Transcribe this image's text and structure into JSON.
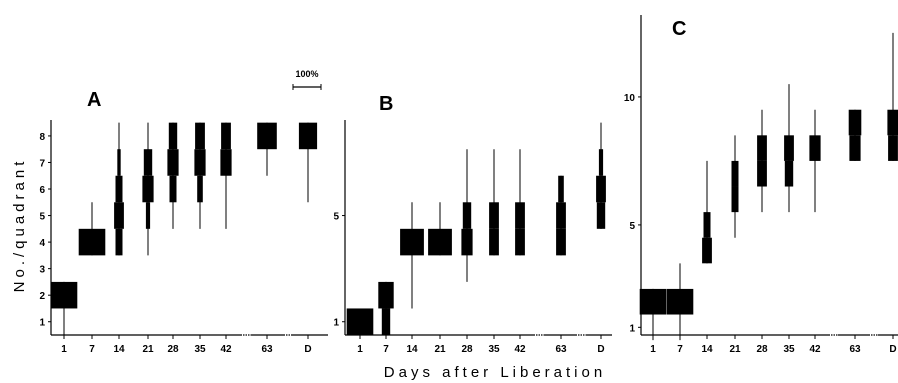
{
  "figure": {
    "ylabel": "No./quadrant",
    "xlabel": "Days after Liberation",
    "scale_label": "100%"
  },
  "chart_data": [
    {
      "type": "kite",
      "title": "A",
      "x": [
        "1",
        "7",
        "14",
        "21",
        "28",
        "35",
        "42",
        "63",
        "D"
      ],
      "ylim": [
        0.5,
        8.6
      ],
      "yticks": [
        1,
        2,
        3,
        4,
        5,
        6,
        7,
        8
      ],
      "kites": [
        {
          "x": "1",
          "bands": [
            {
              "lo": 1.5,
              "hi": 2.5,
              "pct": 95
            }
          ],
          "range": [
            0.5,
            2.5
          ]
        },
        {
          "x": "7",
          "bands": [
            {
              "lo": 3.5,
              "hi": 4.5,
              "pct": 95
            }
          ],
          "range": [
            3.5,
            5.5
          ]
        },
        {
          "x": "14",
          "bands": [
            {
              "lo": 3.5,
              "hi": 4.5,
              "pct": 25
            },
            {
              "lo": 4.5,
              "hi": 5.5,
              "pct": 35
            },
            {
              "lo": 5.5,
              "hi": 6.5,
              "pct": 25
            },
            {
              "lo": 6.5,
              "hi": 7.5,
              "pct": 12
            }
          ],
          "range": [
            3.5,
            8.5
          ]
        },
        {
          "x": "21",
          "bands": [
            {
              "lo": 4.5,
              "hi": 5.5,
              "pct": 15
            },
            {
              "lo": 5.5,
              "hi": 6.5,
              "pct": 40
            },
            {
              "lo": 6.5,
              "hi": 7.5,
              "pct": 30
            }
          ],
          "range": [
            3.5,
            8.5
          ]
        },
        {
          "x": "28",
          "bands": [
            {
              "lo": 5.5,
              "hi": 6.5,
              "pct": 25
            },
            {
              "lo": 6.5,
              "hi": 7.5,
              "pct": 40
            },
            {
              "lo": 7.5,
              "hi": 8.5,
              "pct": 30
            }
          ],
          "range": [
            4.5,
            8.5
          ]
        },
        {
          "x": "35",
          "bands": [
            {
              "lo": 5.5,
              "hi": 6.5,
              "pct": 20
            },
            {
              "lo": 6.5,
              "hi": 7.5,
              "pct": 40
            },
            {
              "lo": 7.5,
              "hi": 8.5,
              "pct": 35
            }
          ],
          "range": [
            4.5,
            8.5
          ]
        },
        {
          "x": "42",
          "bands": [
            {
              "lo": 6.5,
              "hi": 7.5,
              "pct": 40
            },
            {
              "lo": 7.5,
              "hi": 8.5,
              "pct": 35
            }
          ],
          "range": [
            4.5,
            8.5
          ]
        },
        {
          "x": "63",
          "bands": [
            {
              "lo": 7.5,
              "hi": 8.5,
              "pct": 70
            }
          ],
          "range": [
            6.5,
            8.5
          ]
        },
        {
          "x": "D",
          "bands": [
            {
              "lo": 7.5,
              "hi": 8.5,
              "pct": 65
            }
          ],
          "range": [
            5.5,
            8.5
          ]
        }
      ]
    },
    {
      "type": "kite",
      "title": "B",
      "x": [
        "1",
        "7",
        "14",
        "21",
        "28",
        "35",
        "42",
        "63",
        "D"
      ],
      "ylim": [
        0.5,
        8.6
      ],
      "yticks": [
        1,
        5
      ],
      "kites": [
        {
          "x": "1",
          "bands": [
            {
              "lo": 0.5,
              "hi": 1.5,
              "pct": 95
            }
          ],
          "range": [
            0.5,
            1.5
          ]
        },
        {
          "x": "7",
          "bands": [
            {
              "lo": 0.5,
              "hi": 1.5,
              "pct": 30
            },
            {
              "lo": 1.5,
              "hi": 2.5,
              "pct": 55
            }
          ],
          "range": [
            0.5,
            2.5
          ]
        },
        {
          "x": "14",
          "bands": [
            {
              "lo": 3.5,
              "hi": 4.5,
              "pct": 85
            }
          ],
          "range": [
            1.5,
            5.5
          ]
        },
        {
          "x": "21",
          "bands": [
            {
              "lo": 3.5,
              "hi": 4.5,
              "pct": 85
            }
          ],
          "range": [
            3.5,
            5.5
          ]
        },
        {
          "x": "28",
          "bands": [
            {
              "lo": 3.5,
              "hi": 4.5,
              "pct": 40
            },
            {
              "lo": 4.5,
              "hi": 5.5,
              "pct": 30
            }
          ],
          "range": [
            2.5,
            7.5
          ]
        },
        {
          "x": "35",
          "bands": [
            {
              "lo": 3.5,
              "hi": 4.5,
              "pct": 35
            },
            {
              "lo": 4.5,
              "hi": 5.5,
              "pct": 35
            }
          ],
          "range": [
            3.5,
            7.5
          ]
        },
        {
          "x": "42",
          "bands": [
            {
              "lo": 3.5,
              "hi": 4.5,
              "pct": 35
            },
            {
              "lo": 4.5,
              "hi": 5.5,
              "pct": 35
            }
          ],
          "range": [
            3.5,
            7.5
          ]
        },
        {
          "x": "63",
          "bands": [
            {
              "lo": 3.5,
              "hi": 4.5,
              "pct": 35
            },
            {
              "lo": 4.5,
              "hi": 5.5,
              "pct": 35
            },
            {
              "lo": 5.5,
              "hi": 6.5,
              "pct": 20
            }
          ],
          "range": [
            3.5,
            6.5
          ]
        },
        {
          "x": "D",
          "bands": [
            {
              "lo": 4.5,
              "hi": 5.5,
              "pct": 30
            },
            {
              "lo": 5.5,
              "hi": 6.5,
              "pct": 35
            },
            {
              "lo": 6.5,
              "hi": 7.5,
              "pct": 15
            }
          ],
          "range": [
            4.5,
            8.5
          ]
        }
      ]
    },
    {
      "type": "kite",
      "title": "C",
      "x": [
        "1",
        "7",
        "14",
        "21",
        "28",
        "35",
        "42",
        "63",
        "D"
      ],
      "ylim": [
        0.7,
        13.2
      ],
      "yticks": [
        1,
        5,
        10
      ],
      "kites": [
        {
          "x": "1",
          "bands": [
            {
              "lo": 1.5,
              "hi": 2.5,
              "pct": 95
            }
          ],
          "range": [
            0.5,
            2.5
          ]
        },
        {
          "x": "7",
          "bands": [
            {
              "lo": 1.5,
              "hi": 2.5,
              "pct": 95
            }
          ],
          "range": [
            0.5,
            3.5
          ]
        },
        {
          "x": "14",
          "bands": [
            {
              "lo": 3.5,
              "hi": 4.5,
              "pct": 35
            },
            {
              "lo": 4.5,
              "hi": 5.5,
              "pct": 25
            }
          ],
          "range": [
            3.5,
            7.5
          ]
        },
        {
          "x": "21",
          "bands": [
            {
              "lo": 5.5,
              "hi": 6.5,
              "pct": 25
            },
            {
              "lo": 6.5,
              "hi": 7.5,
              "pct": 25
            }
          ],
          "range": [
            4.5,
            8.5
          ]
        },
        {
          "x": "28",
          "bands": [
            {
              "lo": 6.5,
              "hi": 7.5,
              "pct": 35
            },
            {
              "lo": 7.5,
              "hi": 8.5,
              "pct": 35
            }
          ],
          "range": [
            5.5,
            9.5
          ]
        },
        {
          "x": "35",
          "bands": [
            {
              "lo": 6.5,
              "hi": 7.5,
              "pct": 30
            },
            {
              "lo": 7.5,
              "hi": 8.5,
              "pct": 35
            }
          ],
          "range": [
            5.5,
            10.5
          ]
        },
        {
          "x": "42",
          "bands": [
            {
              "lo": 7.5,
              "hi": 8.5,
              "pct": 40
            }
          ],
          "range": [
            5.5,
            9.5
          ]
        },
        {
          "x": "63",
          "bands": [
            {
              "lo": 7.5,
              "hi": 8.5,
              "pct": 40
            },
            {
              "lo": 8.5,
              "hi": 9.5,
              "pct": 45
            }
          ],
          "range": [
            7.5,
            9.5
          ]
        },
        {
          "x": "D",
          "bands": [
            {
              "lo": 7.5,
              "hi": 8.5,
              "pct": 35
            },
            {
              "lo": 8.5,
              "hi": 9.5,
              "pct": 40
            }
          ],
          "range": [
            7.5,
            12.5
          ]
        }
      ]
    }
  ]
}
